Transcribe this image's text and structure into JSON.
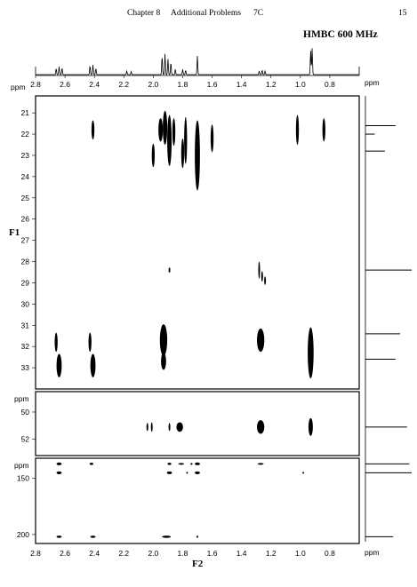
{
  "header": {
    "chapter": "Chapter 8",
    "section": "Additional Problems",
    "problem": "7C",
    "page_number": "15"
  },
  "spectrum_title": "HMBC 600 MHz",
  "axis": {
    "f1_label": "F1",
    "f2_label": "F2",
    "ppm_label": "ppm"
  },
  "chart_data": {
    "type": "heatmap",
    "title": "HMBC 600 MHz",
    "xlabel": "F2",
    "ylabel": "F1",
    "x_unit": "ppm",
    "y_unit": "ppm",
    "xlim": [
      2.8,
      0.6
    ],
    "x_ticks": [
      2.8,
      2.6,
      2.4,
      2.2,
      2.0,
      1.8,
      1.6,
      1.4,
      1.2,
      1.0,
      0.8
    ],
    "f2_projection_peaks": [
      {
        "ppm": 2.66,
        "intensity": 0.14
      },
      {
        "ppm": 2.64,
        "intensity": 0.18
      },
      {
        "ppm": 2.62,
        "intensity": 0.15
      },
      {
        "ppm": 2.43,
        "intensity": 0.2
      },
      {
        "ppm": 2.41,
        "intensity": 0.22
      },
      {
        "ppm": 2.39,
        "intensity": 0.14
      },
      {
        "ppm": 2.18,
        "intensity": 0.08
      },
      {
        "ppm": 2.15,
        "intensity": 0.07
      },
      {
        "ppm": 1.94,
        "intensity": 0.42
      },
      {
        "ppm": 1.92,
        "intensity": 0.48
      },
      {
        "ppm": 1.9,
        "intensity": 0.36
      },
      {
        "ppm": 1.88,
        "intensity": 0.28
      },
      {
        "ppm": 1.85,
        "intensity": 0.12
      },
      {
        "ppm": 1.8,
        "intensity": 0.12
      },
      {
        "ppm": 1.78,
        "intensity": 0.1
      },
      {
        "ppm": 1.7,
        "intensity": 0.42
      },
      {
        "ppm": 1.28,
        "intensity": 0.08
      },
      {
        "ppm": 1.26,
        "intensity": 0.1
      },
      {
        "ppm": 1.24,
        "intensity": 0.08
      },
      {
        "ppm": 0.93,
        "intensity": 0.55
      },
      {
        "ppm": 0.92,
        "intensity": 0.6
      }
    ],
    "panels": [
      {
        "name": "upper",
        "ylim": [
          20.2,
          34.0
        ],
        "y_ticks": [
          21,
          22,
          23,
          24,
          25,
          26,
          27,
          28,
          29,
          30,
          31,
          32,
          33
        ],
        "cross_peaks": [
          {
            "f2": 2.41,
            "f1": 21.8,
            "f2_width": 0.02,
            "f1_height": 0.9
          },
          {
            "f2": 2.0,
            "f1": 23.0,
            "f2_width": 0.02,
            "f1_height": 1.1
          },
          {
            "f2": 1.95,
            "f1": 21.8,
            "f2_width": 0.03,
            "f1_height": 1.1
          },
          {
            "f2": 1.92,
            "f1": 21.7,
            "f2_width": 0.03,
            "f1_height": 1.6
          },
          {
            "f2": 1.89,
            "f1": 22.3,
            "f2_width": 0.03,
            "f1_height": 2.4
          },
          {
            "f2": 1.86,
            "f1": 21.9,
            "f2_width": 0.02,
            "f1_height": 1.3
          },
          {
            "f2": 1.8,
            "f1": 22.9,
            "f2_width": 0.02,
            "f1_height": 1.4
          },
          {
            "f2": 1.78,
            "f1": 22.3,
            "f2_width": 0.02,
            "f1_height": 2.2
          },
          {
            "f2": 1.7,
            "f1": 23.0,
            "f2_width": 0.035,
            "f1_height": 3.3
          },
          {
            "f2": 1.6,
            "f1": 22.2,
            "f2_width": 0.02,
            "f1_height": 1.3
          },
          {
            "f2": 1.02,
            "f1": 21.8,
            "f2_width": 0.02,
            "f1_height": 1.4
          },
          {
            "f2": 0.84,
            "f1": 21.8,
            "f2_width": 0.02,
            "f1_height": 1.1
          },
          {
            "f2": 1.89,
            "f1": 28.4,
            "f2_width": 0.008,
            "f1_height": 0.25
          },
          {
            "f2": 1.28,
            "f1": 28.4,
            "f2_width": 0.008,
            "f1_height": 0.8
          },
          {
            "f2": 1.26,
            "f1": 28.7,
            "f2_width": 0.008,
            "f1_height": 0.5
          },
          {
            "f2": 1.24,
            "f1": 28.9,
            "f2_width": 0.008,
            "f1_height": 0.4
          },
          {
            "f2": 2.66,
            "f1": 31.8,
            "f2_width": 0.02,
            "f1_height": 0.9
          },
          {
            "f2": 2.64,
            "f1": 32.9,
            "f2_width": 0.035,
            "f1_height": 1.1
          },
          {
            "f2": 2.43,
            "f1": 31.8,
            "f2_width": 0.02,
            "f1_height": 0.9
          },
          {
            "f2": 2.41,
            "f1": 32.9,
            "f2_width": 0.035,
            "f1_height": 1.1
          },
          {
            "f2": 1.93,
            "f1": 31.7,
            "f2_width": 0.05,
            "f1_height": 1.5
          },
          {
            "f2": 1.93,
            "f1": 32.7,
            "f2_width": 0.035,
            "f1_height": 0.8
          },
          {
            "f2": 1.27,
            "f1": 31.7,
            "f2_width": 0.05,
            "f1_height": 1.1
          },
          {
            "f2": 0.93,
            "f1": 32.3,
            "f2_width": 0.04,
            "f1_height": 2.4
          }
        ]
      },
      {
        "name": "middle",
        "ylim": [
          48.5,
          53.2
        ],
        "y_ticks": [
          50,
          52
        ],
        "cross_peaks": [
          {
            "f2": 2.04,
            "f1": 51.1,
            "f2_width": 0.01,
            "f1_height": 0.6
          },
          {
            "f2": 2.01,
            "f1": 51.1,
            "f2_width": 0.01,
            "f1_height": 0.7
          },
          {
            "f2": 1.89,
            "f1": 51.1,
            "f2_width": 0.01,
            "f1_height": 0.6
          },
          {
            "f2": 1.82,
            "f1": 51.1,
            "f2_width": 0.045,
            "f1_height": 0.7
          },
          {
            "f2": 1.27,
            "f1": 51.1,
            "f2_width": 0.05,
            "f1_height": 1.0
          },
          {
            "f2": 0.93,
            "f1": 51.1,
            "f2_width": 0.03,
            "f1_height": 1.3
          }
        ]
      },
      {
        "name": "lower",
        "ylim": [
          132,
          208
        ],
        "y_ticks": [
          150,
          200
        ],
        "cross_peaks": [
          {
            "f2": 2.64,
            "f1": 137,
            "f2_width": 0.035,
            "f1_height": 2.5
          },
          {
            "f2": 2.64,
            "f1": 145,
            "f2_width": 0.035,
            "f1_height": 2.5
          },
          {
            "f2": 2.42,
            "f1": 137,
            "f2_width": 0.025,
            "f1_height": 2.0
          },
          {
            "f2": 1.89,
            "f1": 137,
            "f2_width": 0.025,
            "f1_height": 2.0
          },
          {
            "f2": 1.81,
            "f1": 137,
            "f2_width": 0.04,
            "f1_height": 1.5
          },
          {
            "f2": 1.74,
            "f1": 137,
            "f2_width": 0.015,
            "f1_height": 1.5
          },
          {
            "f2": 1.7,
            "f1": 137,
            "f2_width": 0.035,
            "f1_height": 2.5
          },
          {
            "f2": 1.89,
            "f1": 145,
            "f2_width": 0.035,
            "f1_height": 2.5
          },
          {
            "f2": 1.77,
            "f1": 145,
            "f2_width": 0.01,
            "f1_height": 1.5
          },
          {
            "f2": 1.7,
            "f1": 145,
            "f2_width": 0.035,
            "f1_height": 2.5
          },
          {
            "f2": 1.27,
            "f1": 137,
            "f2_width": 0.04,
            "f1_height": 1.5
          },
          {
            "f2": 0.98,
            "f1": 145,
            "f2_width": 0.006,
            "f1_height": 1.2
          },
          {
            "f2": 2.64,
            "f1": 202,
            "f2_width": 0.035,
            "f1_height": 2.0
          },
          {
            "f2": 2.41,
            "f1": 202,
            "f2_width": 0.035,
            "f1_height": 2.0
          },
          {
            "f2": 1.91,
            "f1": 202,
            "f2_width": 0.06,
            "f1_height": 2.0
          },
          {
            "f2": 1.7,
            "f1": 202,
            "f2_width": 0.01,
            "f1_height": 2.0
          }
        ]
      }
    ],
    "f1_projection_peaks": [
      {
        "ppm": 21.6,
        "intensity": 0.65
      },
      {
        "ppm": 22.0,
        "intensity": 0.2
      },
      {
        "ppm": 22.8,
        "intensity": 0.42
      },
      {
        "ppm": 28.4,
        "intensity": 1.0
      },
      {
        "ppm": 31.4,
        "intensity": 0.75
      },
      {
        "ppm": 32.6,
        "intensity": 0.65
      },
      {
        "ppm": 51.1,
        "intensity": 0.9
      },
      {
        "ppm": 137,
        "intensity": 0.95
      },
      {
        "ppm": 145,
        "intensity": 1.0
      },
      {
        "ppm": 202,
        "intensity": 0.6
      }
    ]
  }
}
